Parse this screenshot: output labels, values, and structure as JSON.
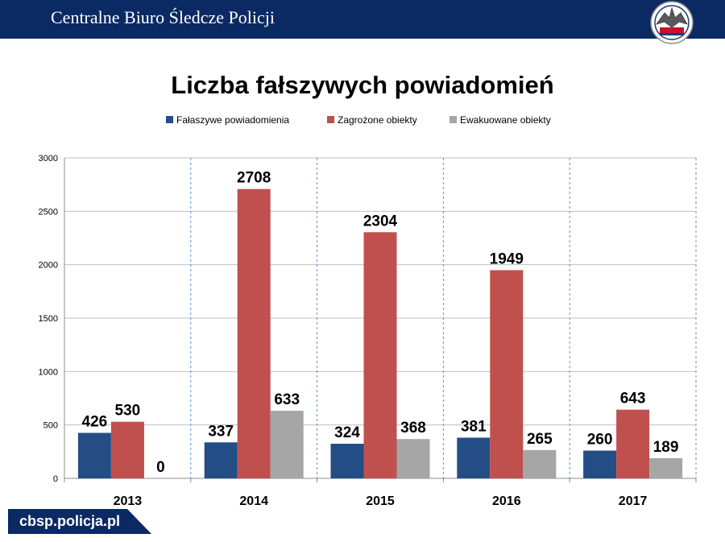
{
  "header": {
    "title": "Centralne Biuro Śledcze Policji"
  },
  "footer": {
    "url": "cbsp.policja.pl"
  },
  "colors": {
    "header_bg": "#0b2a63",
    "series_blue": "#254d85",
    "series_red": "#c0504d",
    "series_gray": "#a6a6a6",
    "grid": "#bfbfbf"
  },
  "chart_data": {
    "type": "bar",
    "title": "Liczba fałszywych powiadomień",
    "xlabel": "",
    "ylabel": "",
    "categories": [
      "2013",
      "2014",
      "2015",
      "2016",
      "2017"
    ],
    "series": [
      {
        "name": "Fałaszywe powiadomienia",
        "color": "#254d85",
        "values": [
          426,
          337,
          324,
          381,
          260
        ]
      },
      {
        "name": "Zagrożone obiekty",
        "color": "#c0504d",
        "values": [
          530,
          2708,
          2304,
          1949,
          643
        ]
      },
      {
        "name": "Ewakuowane obiekty",
        "color": "#a6a6a6",
        "values": [
          0,
          633,
          368,
          265,
          189
        ]
      }
    ],
    "ylim": [
      0,
      3000
    ],
    "yticks": [
      0,
      500,
      1000,
      1500,
      2000,
      2500,
      3000
    ],
    "grid": true,
    "legend": "top-center",
    "data_labels": true
  }
}
